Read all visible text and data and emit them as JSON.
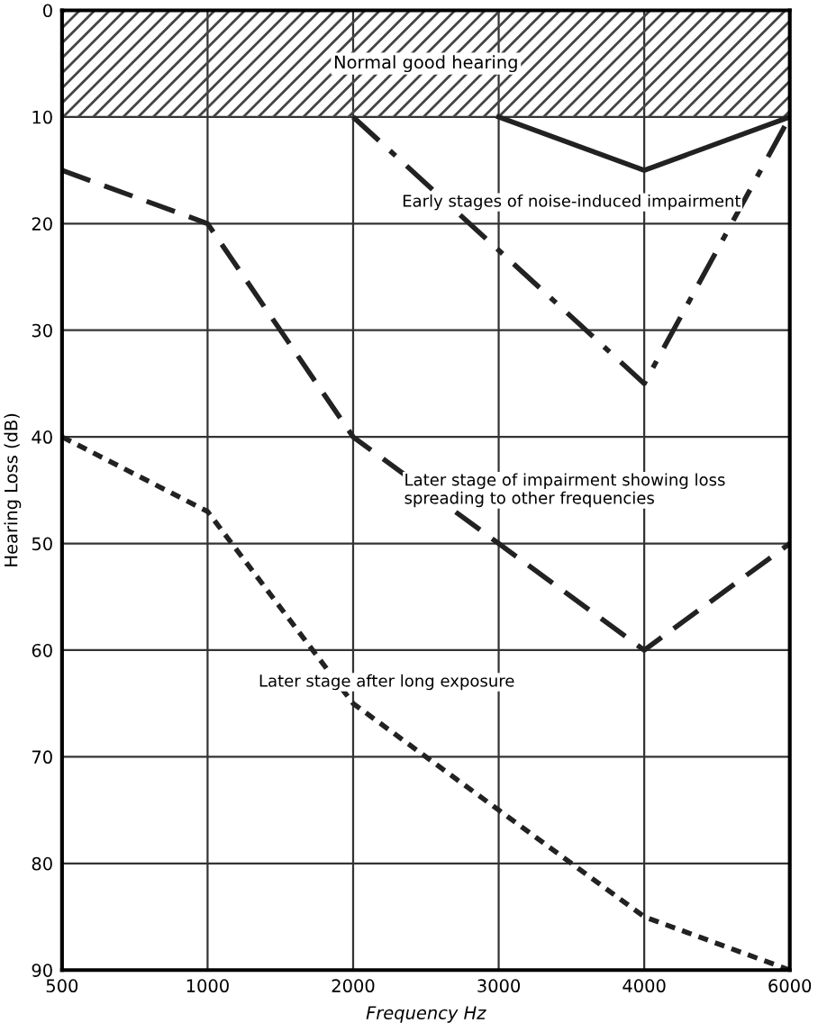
{
  "chart_data": {
    "type": "line",
    "xlabel": "Frequency Hz",
    "ylabel": "Hearing Loss (dB)",
    "categories": [
      "500",
      "1000",
      "2000",
      "3000",
      "4000",
      "6000"
    ],
    "series": [
      {
        "color": "#222222",
        "line_style": "solid",
        "values": [
          null,
          null,
          null,
          10,
          15,
          10
        ]
      },
      {
        "color": "#222222",
        "line_style": "dashdot",
        "values": [
          null,
          null,
          10,
          22.5,
          35,
          10
        ]
      },
      {
        "color": "#222222",
        "line_style": "dashed",
        "values": [
          15,
          20,
          40,
          50,
          60,
          50
        ]
      },
      {
        "color": "#222222",
        "line_style": "dotted",
        "values": [
          40,
          47,
          65,
          75,
          85,
          90
        ]
      }
    ],
    "bands": [
      {
        "axis": "y",
        "from": 0,
        "to": 10,
        "label": "Normal good hearing",
        "color": "#444444"
      }
    ],
    "annotations": [
      "Early stages of noise-induced impairment",
      "Later stage of impairment showing loss\nspreading to other frequencies",
      "Later stage after long exposure"
    ],
    "ylim": [
      90,
      0
    ],
    "yticks": [
      0,
      10,
      20,
      30,
      40,
      50,
      60,
      70,
      80,
      90
    ],
    "grid": true,
    "marker": "none"
  }
}
